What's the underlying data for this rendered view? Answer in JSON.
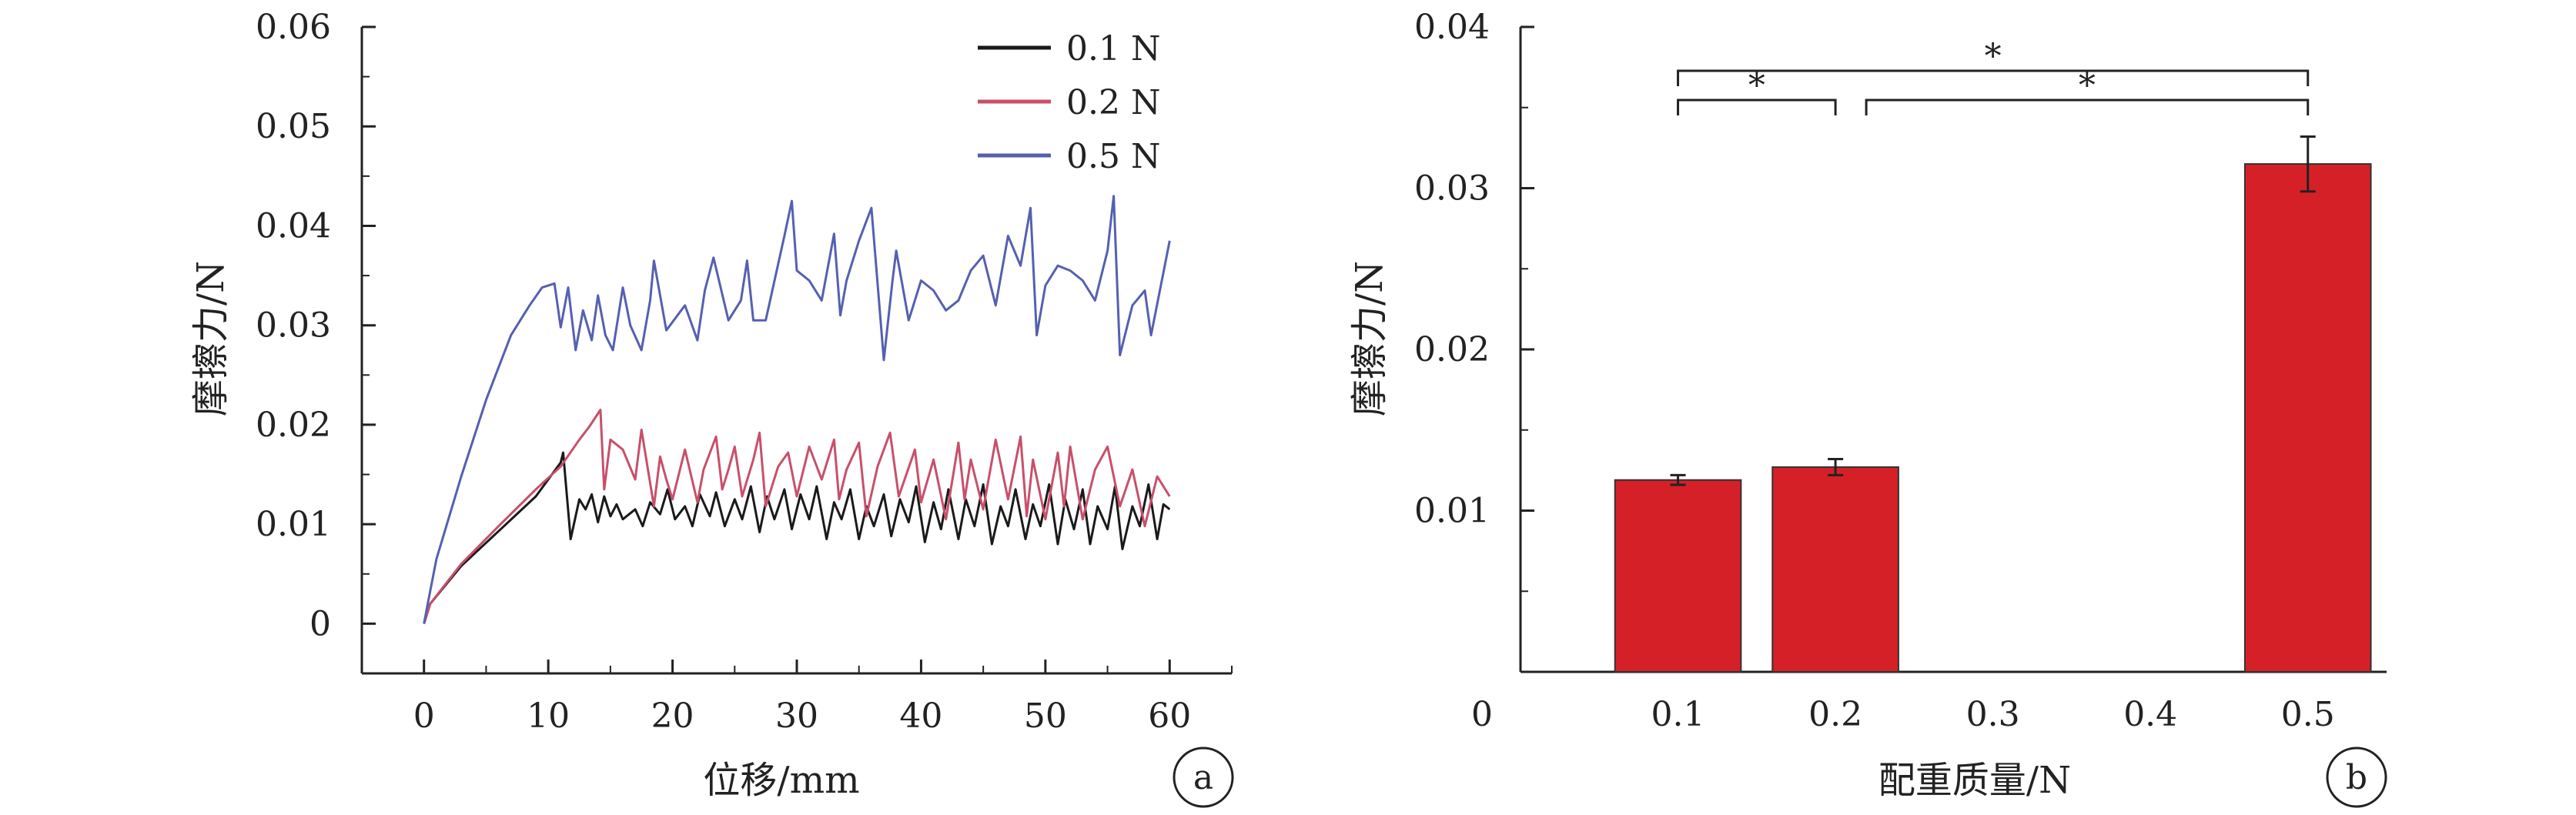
{
  "chart_data": [
    {
      "type": "line",
      "panel_label": "a",
      "xlabel": "位移/mm",
      "ylabel": "摩擦力/N",
      "xlim": [
        -5,
        65
      ],
      "ylim": [
        -0.005,
        0.06
      ],
      "x_ticks": [
        0,
        10,
        20,
        30,
        40,
        50,
        60
      ],
      "x_tick_labels": [
        "0",
        "10",
        "20",
        "30",
        "40",
        "50",
        "60"
      ],
      "y_ticks": [
        0,
        0.01,
        0.02,
        0.03,
        0.04,
        0.05,
        0.06
      ],
      "y_tick_labels": [
        "0",
        "0.01",
        "0.02",
        "0.03",
        "0.04",
        "0.05",
        "0.06"
      ],
      "legend_position": "top-right",
      "grid": false,
      "series": [
        {
          "name": "0.1 N",
          "color": "#1a1a1a",
          "x": [
            0,
            0.5,
            3,
            6,
            9,
            11,
            11.2,
            11.8,
            12.5,
            13,
            13.5,
            14,
            14.5,
            15,
            15.5,
            16,
            17,
            17.6,
            18.2,
            19,
            19.6,
            20.2,
            21,
            21.6,
            22.2,
            23,
            23.5,
            24.2,
            25,
            25.6,
            26.3,
            27,
            27.6,
            28.2,
            29,
            29.6,
            30.3,
            31,
            31.6,
            32.4,
            33,
            33.6,
            34.3,
            35,
            35.6,
            36.2,
            37,
            37.6,
            38.3,
            39,
            39.6,
            40.3,
            41,
            41.6,
            42.2,
            43,
            43.6,
            44.3,
            45,
            45.7,
            46.4,
            47,
            47.6,
            48.4,
            49,
            49.6,
            50.3,
            51,
            51.6,
            52.3,
            53,
            53.6,
            54.2,
            55,
            55.6,
            56.2,
            57,
            57.6,
            58.3,
            59,
            59.5,
            60
          ],
          "values": [
            0,
            0.002,
            0.0058,
            0.0093,
            0.0128,
            0.0162,
            0.0172,
            0.0085,
            0.0125,
            0.0115,
            0.013,
            0.0102,
            0.0128,
            0.0108,
            0.012,
            0.0105,
            0.0115,
            0.0098,
            0.0122,
            0.011,
            0.0135,
            0.0105,
            0.0118,
            0.0098,
            0.013,
            0.0108,
            0.0132,
            0.0098,
            0.0125,
            0.0105,
            0.0138,
            0.0092,
            0.0128,
            0.0105,
            0.0135,
            0.0095,
            0.013,
            0.0105,
            0.0138,
            0.0085,
            0.0122,
            0.0105,
            0.0135,
            0.0085,
            0.0118,
            0.0098,
            0.013,
            0.0088,
            0.0125,
            0.0102,
            0.0138,
            0.0082,
            0.0122,
            0.0095,
            0.0135,
            0.0085,
            0.0125,
            0.0098,
            0.014,
            0.008,
            0.0118,
            0.0098,
            0.0135,
            0.0085,
            0.012,
            0.0098,
            0.014,
            0.008,
            0.0125,
            0.0095,
            0.0135,
            0.008,
            0.0118,
            0.0095,
            0.0138,
            0.0075,
            0.0118,
            0.0098,
            0.014,
            0.0085,
            0.012,
            0.0115
          ]
        },
        {
          "name": "0.2 N",
          "color": "#c8506a",
          "x": [
            0,
            0.5,
            3,
            6,
            9,
            11,
            12.5,
            13.3,
            14.2,
            14.5,
            15,
            16,
            17,
            17.5,
            18.5,
            19,
            19.5,
            20,
            21,
            22,
            22.5,
            23.5,
            24,
            24.5,
            25,
            25.6,
            26.5,
            27,
            27.5,
            28.5,
            29.3,
            30,
            31,
            32,
            33,
            33.4,
            34,
            35,
            35.6,
            36.5,
            37.5,
            38.2,
            39.5,
            40,
            41,
            42,
            43,
            43.5,
            44,
            45,
            46,
            47,
            48,
            48.5,
            49,
            50,
            51,
            51.5,
            52,
            53,
            54,
            55,
            56,
            57,
            58,
            59,
            60
          ],
          "values": [
            0,
            0.002,
            0.006,
            0.0098,
            0.0135,
            0.0158,
            0.0185,
            0.0198,
            0.0215,
            0.0135,
            0.0185,
            0.0175,
            0.0145,
            0.0195,
            0.0118,
            0.0168,
            0.0145,
            0.0125,
            0.0175,
            0.0122,
            0.0155,
            0.0188,
            0.0135,
            0.0155,
            0.0178,
            0.0128,
            0.0165,
            0.0192,
            0.0118,
            0.0158,
            0.0172,
            0.0128,
            0.0178,
            0.0145,
            0.0185,
            0.0125,
            0.0155,
            0.0182,
            0.0108,
            0.0158,
            0.0192,
            0.0128,
            0.0175,
            0.0122,
            0.0165,
            0.0105,
            0.0182,
            0.0125,
            0.0165,
            0.0115,
            0.0185,
            0.0125,
            0.0188,
            0.0108,
            0.0165,
            0.0105,
            0.0172,
            0.0118,
            0.0178,
            0.0105,
            0.0155,
            0.0178,
            0.0118,
            0.0155,
            0.0098,
            0.0148,
            0.0128
          ]
        },
        {
          "name": "0.5 N",
          "color": "#5560b0",
          "x": [
            0,
            0.3,
            1,
            3,
            5,
            7,
            8.5,
            9.5,
            10.5,
            11,
            11.6,
            12.2,
            12.8,
            13.5,
            14,
            14.6,
            15.2,
            16,
            16.6,
            17.5,
            18.2,
            18.5,
            19.5,
            21,
            22,
            22.6,
            23.3,
            24.5,
            25.5,
            26,
            26.5,
            27.5,
            29,
            29.6,
            30,
            31,
            32,
            33,
            33.5,
            34,
            35,
            36,
            37,
            37.7,
            38,
            39,
            40,
            41,
            42,
            43,
            44,
            45,
            46,
            47,
            48,
            48.8,
            49.3,
            50,
            51,
            52,
            53,
            54,
            55,
            55.5,
            56,
            57,
            58,
            58.5,
            60
          ],
          "values": [
            0,
            0.002,
            0.0065,
            0.0148,
            0.0225,
            0.029,
            0.032,
            0.0338,
            0.0342,
            0.0298,
            0.0338,
            0.0275,
            0.0315,
            0.0285,
            0.033,
            0.029,
            0.0275,
            0.0338,
            0.03,
            0.0275,
            0.0325,
            0.0365,
            0.0295,
            0.032,
            0.0285,
            0.0335,
            0.0368,
            0.0305,
            0.0325,
            0.0365,
            0.0305,
            0.0305,
            0.039,
            0.0425,
            0.0355,
            0.0345,
            0.0325,
            0.0392,
            0.031,
            0.0345,
            0.0385,
            0.0418,
            0.0265,
            0.0345,
            0.0375,
            0.0305,
            0.0345,
            0.0335,
            0.0315,
            0.0325,
            0.0355,
            0.037,
            0.032,
            0.039,
            0.036,
            0.0418,
            0.029,
            0.034,
            0.036,
            0.0355,
            0.0345,
            0.0325,
            0.0375,
            0.043,
            0.027,
            0.032,
            0.0335,
            0.029,
            0.0385
          ]
        }
      ]
    },
    {
      "type": "bar",
      "panel_label": "b",
      "xlabel": "配重质量/N",
      "ylabel": "摩擦力/N",
      "xlim": [
        0,
        0.55
      ],
      "ylim": [
        0,
        0.04
      ],
      "x_tick_labels": [
        "0",
        "0.1",
        "0.2",
        "0.3",
        "0.4",
        "0.5"
      ],
      "y_ticks": [
        0.01,
        0.02,
        0.03,
        0.04
      ],
      "y_tick_labels": [
        "0.01",
        "0.02",
        "0.03",
        "0.04"
      ],
      "grid": false,
      "bar_color": "#d62027",
      "categories": [
        "0.1",
        "0.2",
        "0.5"
      ],
      "values": [
        0.0119,
        0.0127,
        0.0315
      ],
      "errors": [
        0.0003,
        0.0005,
        0.0017
      ],
      "significance": [
        {
          "from": "0.1",
          "to": "0.2",
          "label": "*"
        },
        {
          "from": "0.2",
          "to": "0.5",
          "label": "*"
        },
        {
          "from": "0.1",
          "to": "0.5",
          "label": "*"
        }
      ]
    }
  ]
}
